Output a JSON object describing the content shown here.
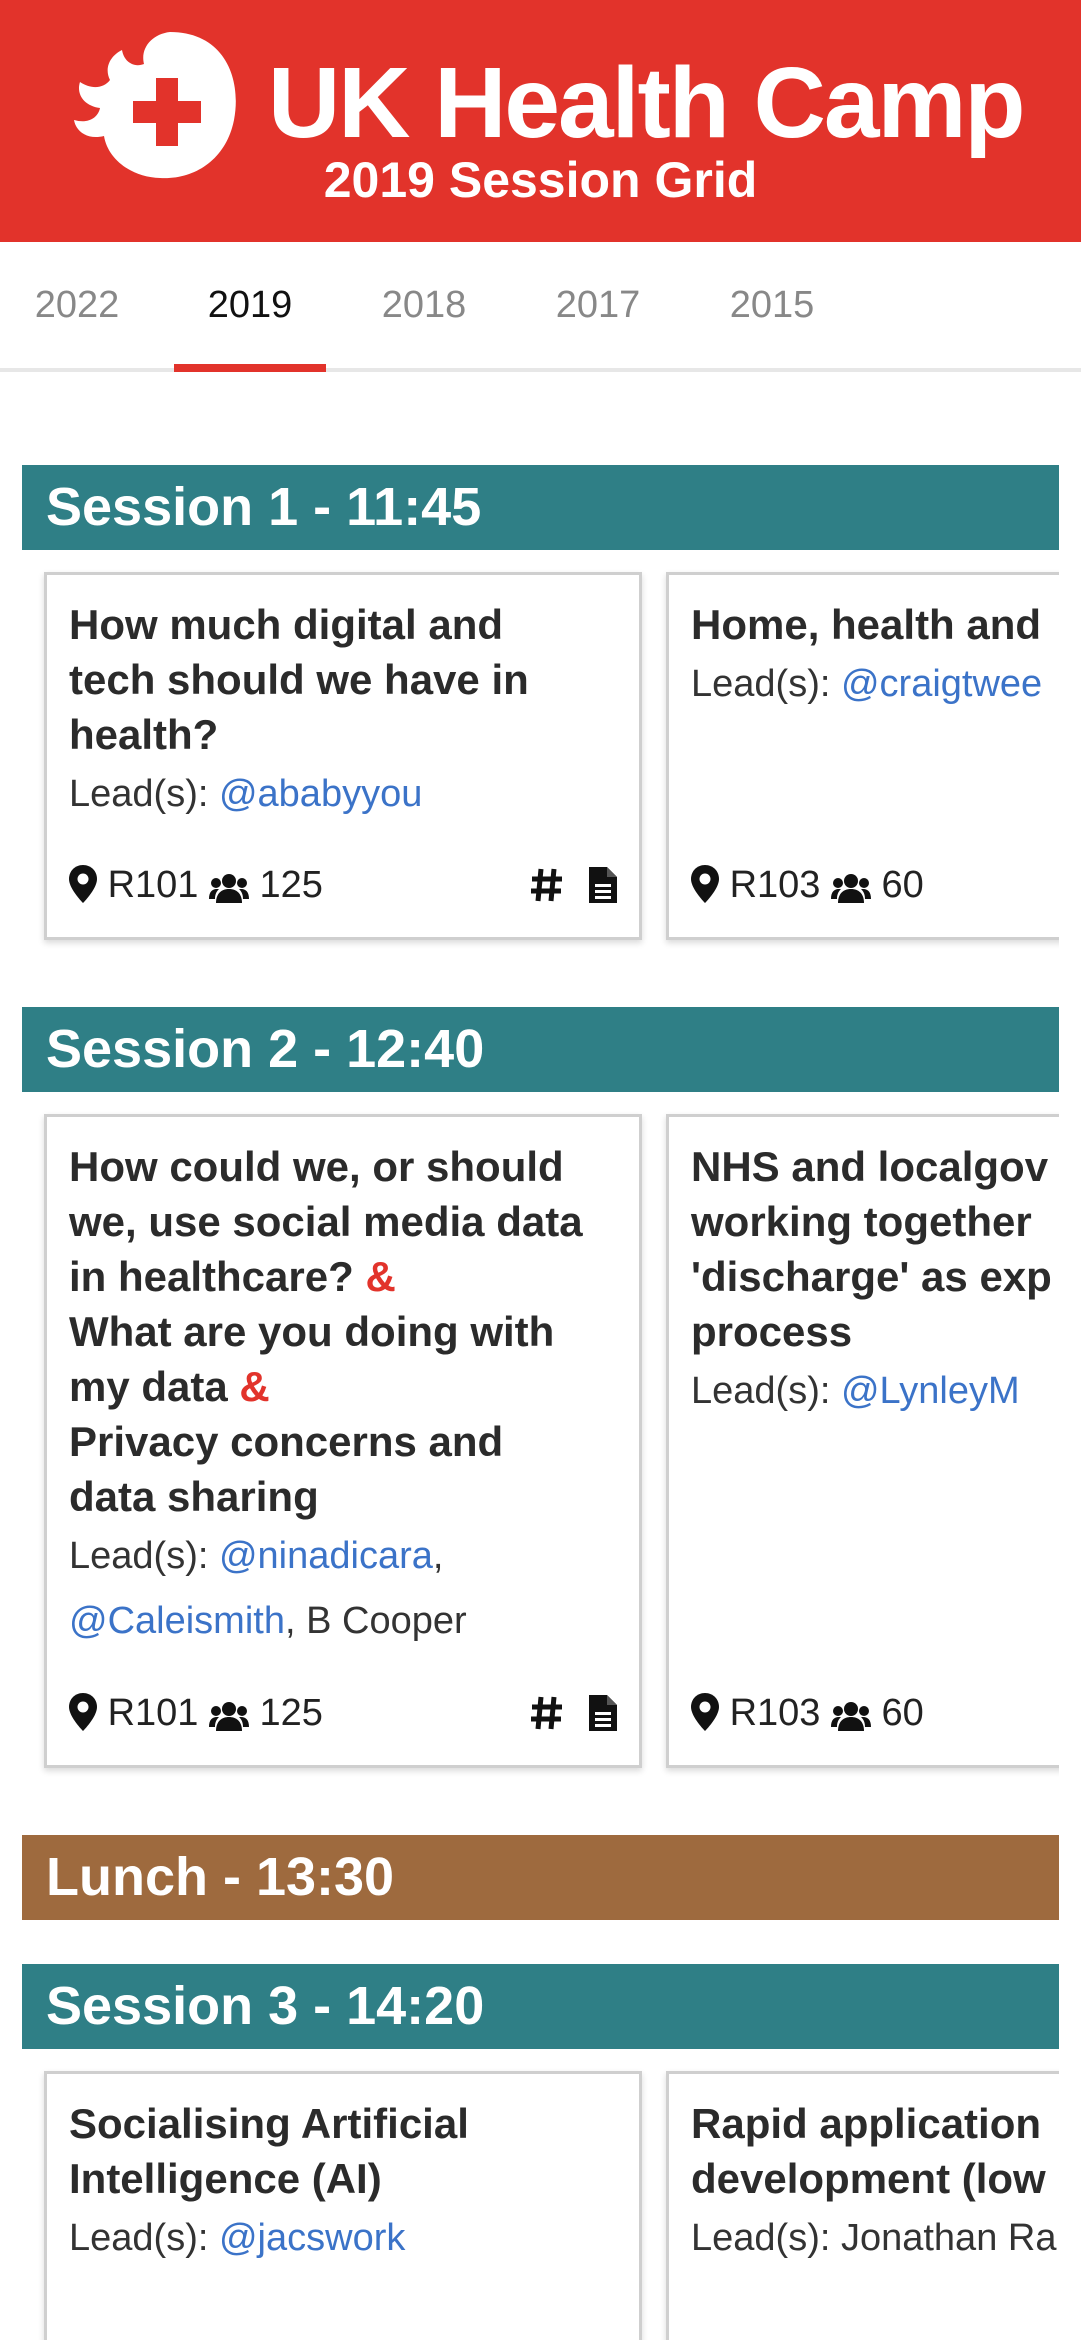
{
  "header": {
    "title": "UK Health Camp",
    "subtitle": "2019 Session Grid",
    "colors": {
      "brand": "#e2332b",
      "session": "#2f7f86",
      "lunch": "#9e6a3e",
      "link": "#3b73c8"
    }
  },
  "tabs": [
    {
      "label": "2022",
      "active": false
    },
    {
      "label": "2019",
      "active": true
    },
    {
      "label": "2018",
      "active": false
    },
    {
      "label": "2017",
      "active": false
    },
    {
      "label": "2015",
      "active": false
    }
  ],
  "sessions": [
    {
      "label": "Session 1 - 11:45",
      "cards": [
        {
          "title_lines": [
            "How much digital and",
            "tech should we have in",
            "health?"
          ],
          "leads_label": "Lead(s):",
          "leads": [
            "@ababyyou"
          ],
          "room": "R101",
          "capacity": "125",
          "hashtag_icon": "hash-icon",
          "notes_icon": "document-icon"
        },
        {
          "title_lines": [
            "Home, health and"
          ],
          "leads_label": "Lead(s):",
          "leads": [
            "@craigtwee"
          ],
          "room": "R103",
          "capacity": "60"
        }
      ]
    },
    {
      "label": "Session 2 - 12:40",
      "cards": [
        {
          "title_lines": [
            "How could we, or should",
            "we, use social media data",
            "in healthcare?",
            "What are you doing with",
            "my data",
            "Privacy concerns and",
            "data sharing"
          ],
          "amp": "&",
          "leads_label": "Lead(s):",
          "leads": [
            "@ninadicara",
            "@Caleismith"
          ],
          "lead_plain": "B Cooper",
          "room": "R101",
          "capacity": "125"
        },
        {
          "title_lines": [
            "NHS and localgov",
            "working together",
            "'discharge' as exp",
            "process"
          ],
          "leads_label": "Lead(s):",
          "leads": [
            "@LynleyM"
          ],
          "room": "R103",
          "capacity": "60"
        }
      ]
    },
    {
      "label": "Lunch - 13:30"
    },
    {
      "label": "Session 3 - 14:20",
      "cards": [
        {
          "title_lines": [
            "Socialising Artificial",
            "Intelligence (AI)"
          ],
          "leads_label": "Lead(s):",
          "leads": [
            "@jacswork"
          ]
        },
        {
          "title_lines": [
            "Rapid application",
            "development (low"
          ],
          "leads_label": "Lead(s):",
          "lead_plain": "Jonathan Ra"
        }
      ]
    }
  ]
}
